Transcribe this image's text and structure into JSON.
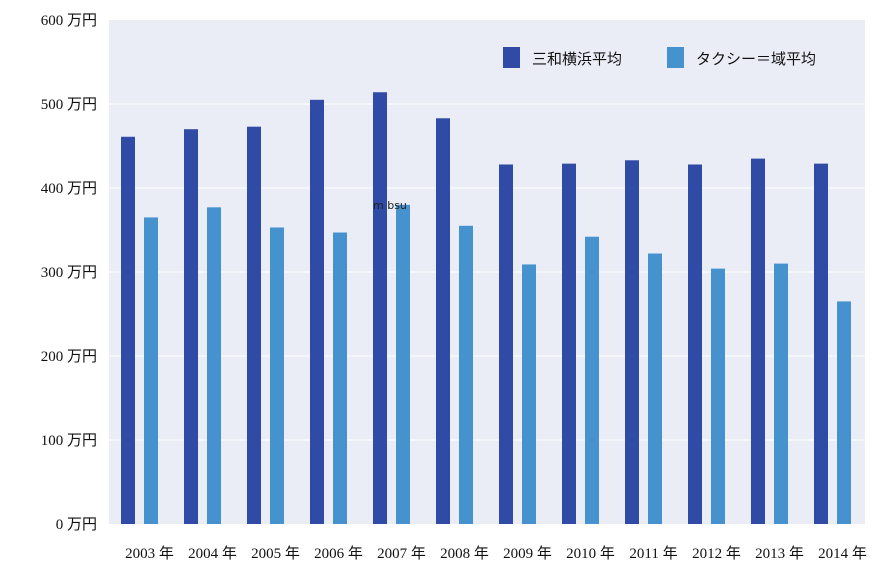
{
  "chart_data": {
    "type": "bar",
    "categories": [
      "2003年",
      "2004年",
      "2005年",
      "2006年",
      "2007年",
      "2008年",
      "2009年",
      "2010年",
      "2011年",
      "2012年",
      "2013年",
      "2014年"
    ],
    "category_labels": [
      "2003 年",
      "2004 年",
      "2005 年",
      "2006 年",
      "2007 年",
      "2008 年",
      "2009 年",
      "2010 年",
      "2011 年",
      "2012 年",
      "2013 年",
      "2014 年"
    ],
    "series": [
      {
        "name": "三和横浜平均",
        "color": "#2f4ba6",
        "values": [
          461,
          470,
          473,
          505,
          514,
          483,
          428,
          429,
          433,
          428,
          435,
          429
        ]
      },
      {
        "name": "タクシー＝域平均",
        "color": "#4592cf",
        "values": [
          365,
          377,
          353,
          347,
          380,
          355,
          309,
          342,
          322,
          304,
          310,
          265
        ]
      }
    ],
    "ylim": [
      0,
      600
    ],
    "yticks": [
      0,
      100,
      200,
      300,
      400,
      500,
      600
    ],
    "ytick_labels": [
      "0 万円",
      "100 万円",
      "200 万円",
      "300 万円",
      "400 万円",
      "500 万円",
      "600 万円"
    ],
    "title": "",
    "xlabel": "",
    "ylabel": "",
    "grid": true,
    "legend_position": "top-right",
    "annotation": "m bsu",
    "plot_background": "#eaecf6",
    "grid_color": "#ffffff"
  }
}
